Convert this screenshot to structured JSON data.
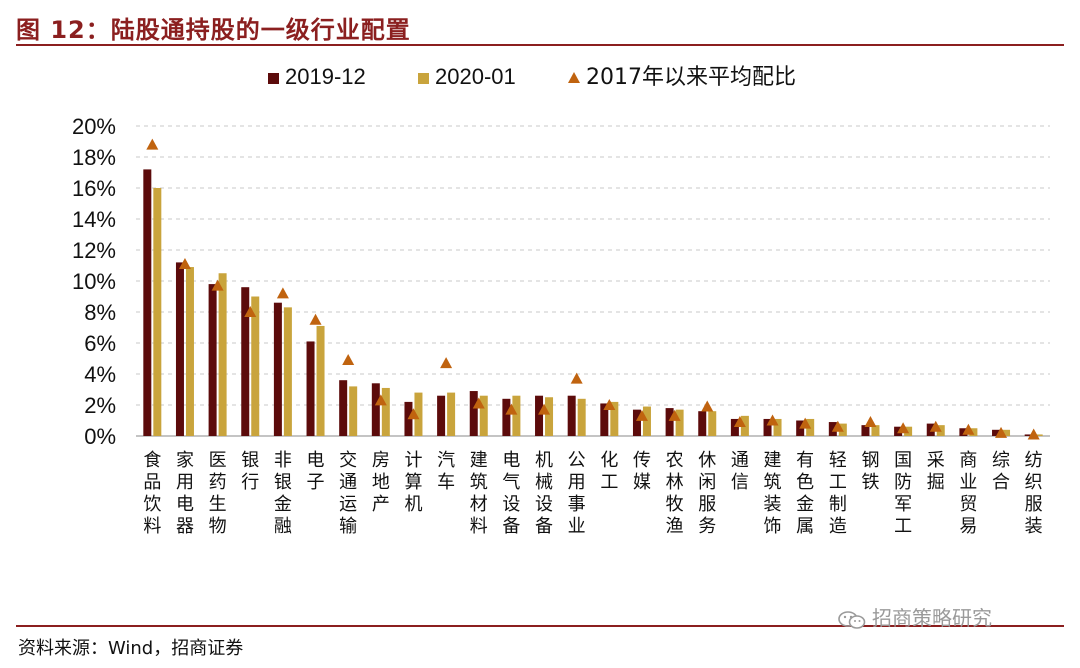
{
  "figure_title": "图 12：陆股通持股的一级行业配置",
  "source": "资料来源：Wind，招商证券",
  "watermark": "招商策略研究",
  "watermark_icon": "wechat-icon",
  "colors": {
    "series_2019": "#5c0b0b",
    "series_2020": "#c9a43c",
    "triangle": "#c0630f",
    "accent": "#8b1f1f"
  },
  "chart_data": {
    "type": "bar",
    "legend_position": "top",
    "ylim": [
      0,
      20
    ],
    "y_ticks": [
      "0%",
      "2%",
      "4%",
      "6%",
      "8%",
      "10%",
      "12%",
      "14%",
      "16%",
      "18%",
      "20%"
    ],
    "grid": true,
    "categories": [
      "食品饮料",
      "家用电器",
      "医药生物",
      "银行",
      "非银金融",
      "电子",
      "交通运输",
      "房地产",
      "计算机",
      "汽车",
      "建筑材料",
      "电气设备",
      "机械设备",
      "公用事业",
      "化工",
      "传媒",
      "农林牧渔",
      "休闲服务",
      "通信",
      "建筑装饰",
      "有色金属",
      "轻工制造",
      "钢铁",
      "国防军工",
      "采掘",
      "商业贸易",
      "综合",
      "纺织服装"
    ],
    "series": [
      {
        "name": "2019-12",
        "kind": "bar",
        "values": [
          17.2,
          11.2,
          9.8,
          9.6,
          8.6,
          6.1,
          3.6,
          3.4,
          2.2,
          2.6,
          2.9,
          2.4,
          2.6,
          2.6,
          2.1,
          1.7,
          1.8,
          1.6,
          1.1,
          1.1,
          1.0,
          0.9,
          0.7,
          0.6,
          0.8,
          0.5,
          0.4,
          0.1
        ]
      },
      {
        "name": "2020-01",
        "kind": "bar",
        "values": [
          16.0,
          10.9,
          10.5,
          9.0,
          8.3,
          7.1,
          3.2,
          3.1,
          2.8,
          2.8,
          2.6,
          2.6,
          2.5,
          2.4,
          2.2,
          1.9,
          1.7,
          1.6,
          1.3,
          1.1,
          1.1,
          0.8,
          0.7,
          0.6,
          0.7,
          0.5,
          0.4,
          0.1
        ]
      },
      {
        "name": "2017年以来平均配比",
        "kind": "triangle",
        "values": [
          18.8,
          11.1,
          9.7,
          8.0,
          9.2,
          7.5,
          4.9,
          2.3,
          1.4,
          4.7,
          2.1,
          1.7,
          1.7,
          3.7,
          2.0,
          1.3,
          1.3,
          1.9,
          0.9,
          1.0,
          0.8,
          0.6,
          0.9,
          0.5,
          0.6,
          0.4,
          0.2,
          0.1
        ]
      }
    ]
  }
}
